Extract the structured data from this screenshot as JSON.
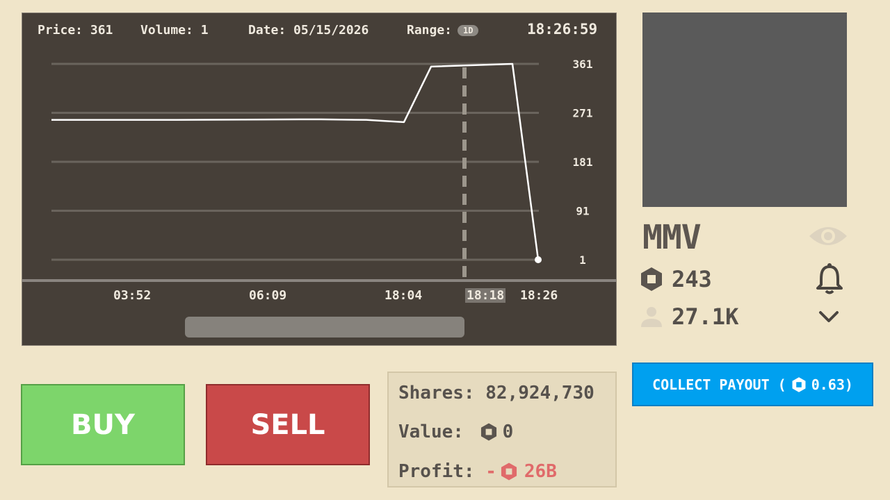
{
  "chart_header": {
    "price": "Price: 361",
    "volume": "Volume: 1",
    "date": "Date: 05/15/2026",
    "range_label": "Range:",
    "range_value": "1D",
    "time": "18:26:59"
  },
  "chart_data": {
    "type": "line",
    "y_ticks": [
      "361",
      "271",
      "181",
      "91",
      "1"
    ],
    "x_ticks": [
      "03:52",
      "06:09",
      "18:04",
      "18:18",
      "18:26"
    ],
    "highlighted_x_tick": "18:18",
    "ylim": [
      1,
      361
    ],
    "grid": true,
    "series": [
      {
        "x_index": [
          0,
          0.5,
          1.0,
          1.17,
          1.35,
          1.5,
          2.0,
          2.19,
          2.74,
          3.6,
          4.0
        ],
        "values": [
          258,
          258,
          259,
          259,
          258,
          254,
          254,
          356,
          361,
          361,
          1
        ]
      }
    ],
    "colors": {
      "line": "#ffffff",
      "grid": "#6a645d",
      "marker": "#9c968c"
    }
  },
  "profile": {
    "ticker": "MMV",
    "coins": "243",
    "followers": "27.1K"
  },
  "actions": {
    "buy": "BUY",
    "sell": "SELL",
    "collect_prefix": "COLLECT PAYOUT (",
    "collect_amount": "0.63)"
  },
  "holdings": {
    "shares_label": "Shares:",
    "shares_value": "82,924,730",
    "value_label": "Value:",
    "value_amount": "0",
    "profit_label": "Profit:",
    "profit_sign": "-",
    "profit_amount": "26B"
  },
  "icons": [
    "coin-icon",
    "user-icon",
    "eye-icon",
    "bell-icon",
    "chevron-down-icon"
  ]
}
